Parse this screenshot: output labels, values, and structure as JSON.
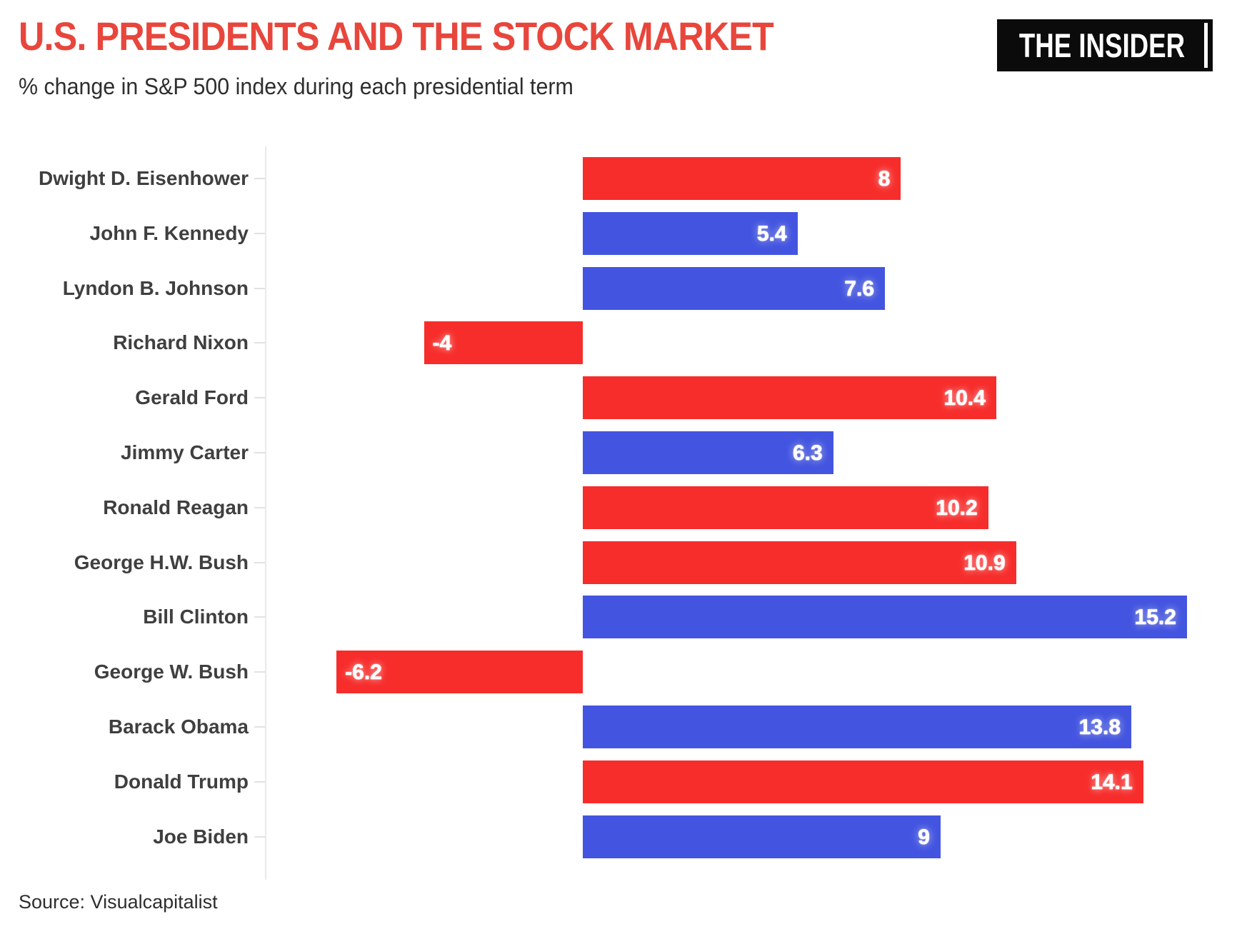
{
  "header": {
    "title": "U.S. PRESIDENTS AND THE STOCK MARKET",
    "subtitle": "% change in S&P 500 index during each presidential term",
    "logo_text": "THE INSIDER"
  },
  "footer": {
    "source": "Source: Visualcapitalist"
  },
  "colors": {
    "title": "#e8463c",
    "republican": "#f62d2b",
    "democrat": "#4355e0",
    "glow_republican": "#ff1b1b",
    "glow_democrat": "#2236c9",
    "label_text": "#3f3f3f",
    "subtitle_text": "#2e2e2e",
    "axis_line": "#e9e9e9",
    "tick": "#e2e2e2",
    "logo_bg": "#0b0b0b",
    "value_text": "#ffffff"
  },
  "chart_data": {
    "type": "bar",
    "orientation": "horizontal",
    "title": "U.S. PRESIDENTS AND THE STOCK MARKET",
    "subtitle": "% change in S&P 500 index during each presidential term",
    "xlabel": "",
    "ylabel": "",
    "xlim": [
      -8,
      16.1
    ],
    "grid": false,
    "legend": false,
    "categories": [
      "Dwight D. Eisenhower",
      "John F. Kennedy",
      "Lyndon B. Johnson",
      "Richard Nixon",
      "Gerald Ford",
      "Jimmy Carter",
      "Ronald Reagan",
      "George H.W. Bush",
      "Bill Clinton",
      "George W. Bush",
      "Barack Obama",
      "Donald Trump",
      "Joe Biden"
    ],
    "values": [
      8,
      5.4,
      7.6,
      -4,
      10.4,
      6.3,
      10.2,
      10.9,
      15.2,
      -6.2,
      13.8,
      14.1,
      9
    ],
    "bars": [
      {
        "label": "Dwight D. Eisenhower",
        "value": 8,
        "display": "8",
        "party": "republican"
      },
      {
        "label": "John F. Kennedy",
        "value": 5.4,
        "display": "5.4",
        "party": "democrat"
      },
      {
        "label": "Lyndon B. Johnson",
        "value": 7.6,
        "display": "7.6",
        "party": "democrat"
      },
      {
        "label": "Richard Nixon",
        "value": -4,
        "display": "-4",
        "party": "republican"
      },
      {
        "label": "Gerald Ford",
        "value": 10.4,
        "display": "10.4",
        "party": "republican"
      },
      {
        "label": "Jimmy Carter",
        "value": 6.3,
        "display": "6.3",
        "party": "democrat"
      },
      {
        "label": "Ronald Reagan",
        "value": 10.2,
        "display": "10.2",
        "party": "republican"
      },
      {
        "label": "George H.W. Bush",
        "value": 10.9,
        "display": "10.9",
        "party": "republican"
      },
      {
        "label": "Bill Clinton",
        "value": 15.2,
        "display": "15.2",
        "party": "democrat"
      },
      {
        "label": "George W. Bush",
        "value": -6.2,
        "display": "-6.2",
        "party": "republican"
      },
      {
        "label": "Barack Obama",
        "value": 13.8,
        "display": "13.8",
        "party": "democrat"
      },
      {
        "label": "Donald Trump",
        "value": 14.1,
        "display": "14.1",
        "party": "republican"
      },
      {
        "label": "Joe Biden",
        "value": 9,
        "display": "9",
        "party": "democrat"
      }
    ]
  }
}
